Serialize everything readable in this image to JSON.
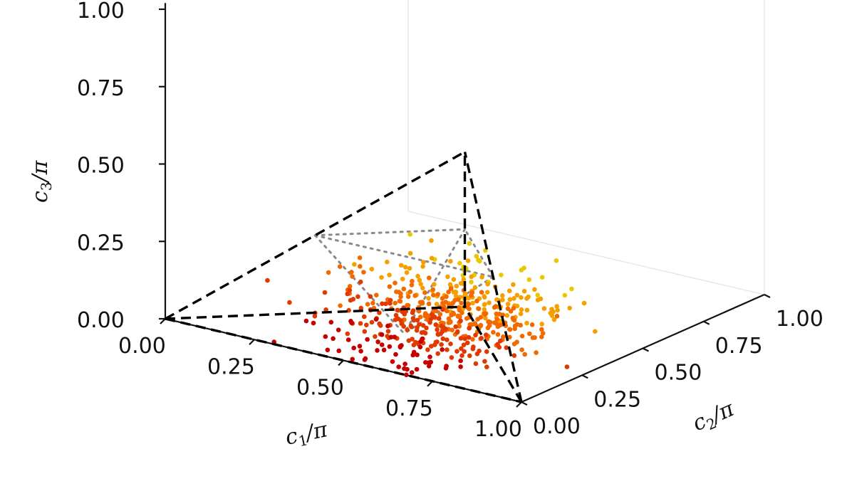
{
  "chart_data": {
    "type": "scatter3d",
    "xlabel": "c1/π",
    "ylabel": "c2/π",
    "zlabel": "c3/π",
    "xlim": [
      0,
      1
    ],
    "ylim": [
      0,
      1
    ],
    "zlim": [
      0,
      1
    ],
    "x_ticks": [
      "0.00",
      "0.25",
      "0.50",
      "0.75",
      "1.00"
    ],
    "y_ticks": [
      "0.00",
      "0.25",
      "0.50",
      "0.75",
      "1.00"
    ],
    "z_ticks": [
      "0.00",
      "0.25",
      "0.50",
      "0.75",
      "1.00"
    ],
    "grid": true,
    "colormap": [
      "#c40000",
      "#e03a00",
      "#f06a00",
      "#f5a000",
      "#e8c800"
    ],
    "tetrahedron_edges": [
      [
        [
          0,
          0,
          0
        ],
        [
          1,
          0,
          0
        ]
      ],
      [
        [
          0,
          0,
          0
        ],
        [
          0.5,
          0.5,
          0
        ]
      ],
      [
        [
          0,
          0,
          0
        ],
        [
          0.5,
          0.5,
          0.5
        ]
      ],
      [
        [
          1,
          0,
          0
        ],
        [
          0.5,
          0.5,
          0
        ]
      ],
      [
        [
          1,
          0,
          0
        ],
        [
          0.5,
          0.5,
          0.5
        ]
      ],
      [
        [
          0.5,
          0.5,
          0
        ],
        [
          0.5,
          0.5,
          0.5
        ]
      ]
    ],
    "inner_region_edges": [
      [
        [
          0.25,
          0.25,
          0.25
        ],
        [
          0.75,
          0.25,
          0.25
        ]
      ],
      [
        [
          0.25,
          0.25,
          0.25
        ],
        [
          0.5,
          0.5,
          0.25
        ]
      ],
      [
        [
          0.75,
          0.25,
          0.25
        ],
        [
          0.5,
          0.5,
          0.25
        ]
      ],
      [
        [
          0.25,
          0.25,
          0.25
        ],
        [
          0.5,
          0.25,
          0
        ]
      ],
      [
        [
          0.75,
          0.25,
          0.25
        ],
        [
          0.5,
          0.25,
          0
        ]
      ],
      [
        [
          0.5,
          0.5,
          0.25
        ],
        [
          0.5,
          0.25,
          0
        ]
      ]
    ],
    "point_count": 520,
    "point_distribution": {
      "x_center": 0.6,
      "x_spread": 0.13,
      "y_center": 0.27,
      "y_spread": 0.14,
      "z_center": 0.07,
      "z_spread": 0.07
    }
  }
}
